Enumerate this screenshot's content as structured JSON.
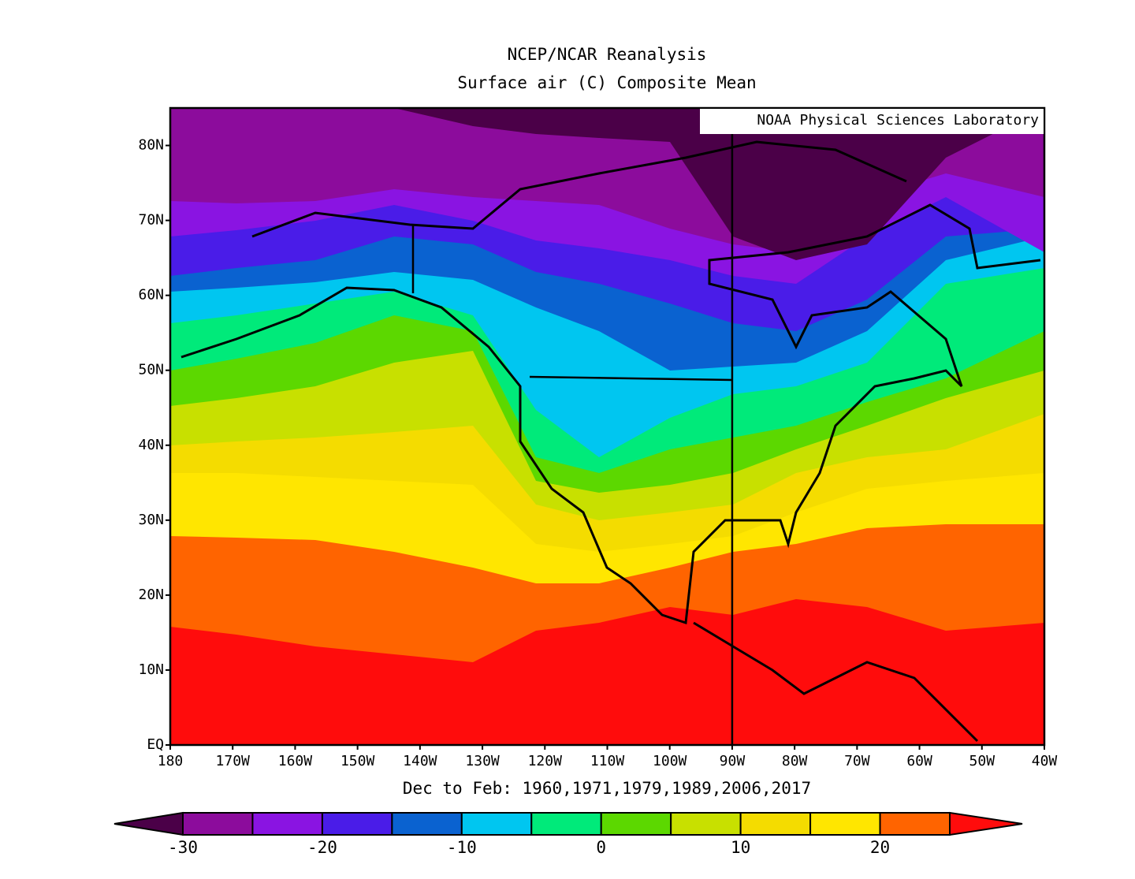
{
  "chart_data": {
    "type": "map",
    "title": "NCEP/NCAR Reanalysis",
    "subtitle": "Surface air (C) Composite Mean",
    "credit": "NOAA Physical Sciences Laboratory",
    "period": "Dec to Feb: 1960,1971,1979,1989,2006,2017",
    "xlim": [
      -180,
      -40
    ],
    "ylim": [
      0,
      85
    ],
    "xticks": [
      {
        "value": -180,
        "label": "180"
      },
      {
        "value": -170,
        "label": "170W"
      },
      {
        "value": -160,
        "label": "160W"
      },
      {
        "value": -150,
        "label": "150W"
      },
      {
        "value": -140,
        "label": "140W"
      },
      {
        "value": -130,
        "label": "130W"
      },
      {
        "value": -120,
        "label": "120W"
      },
      {
        "value": -110,
        "label": "110W"
      },
      {
        "value": -100,
        "label": "100W"
      },
      {
        "value": -90,
        "label": "90W"
      },
      {
        "value": -80,
        "label": "80W"
      },
      {
        "value": -70,
        "label": "70W"
      },
      {
        "value": -60,
        "label": "60W"
      },
      {
        "value": -50,
        "label": "50W"
      },
      {
        "value": -40,
        "label": "40W"
      }
    ],
    "yticks": [
      {
        "value": 0,
        "label": "EQ"
      },
      {
        "value": 10,
        "label": "10N"
      },
      {
        "value": 20,
        "label": "20N"
      },
      {
        "value": 30,
        "label": "30N"
      },
      {
        "value": 40,
        "label": "40N"
      },
      {
        "value": 50,
        "label": "50N"
      },
      {
        "value": 60,
        "label": "60N"
      },
      {
        "value": 70,
        "label": "70N"
      },
      {
        "value": 80,
        "label": "80N"
      }
    ],
    "colorbar": {
      "levels": [
        -30,
        -25,
        -20,
        -15,
        -10,
        -5,
        0,
        5,
        10,
        15,
        20,
        25
      ],
      "colors": [
        "#4b0048",
        "#8c0c9c",
        "#8a14e2",
        "#4a1ce8",
        "#0a62d0",
        "#00c6f0",
        "#00ea7a",
        "#5cd800",
        "#c8e000",
        "#f4dc00",
        "#ffe600",
        "#ff6400",
        "#ff0c0c"
      ],
      "ticks": [
        -30,
        -20,
        -10,
        0,
        10,
        20
      ]
    }
  }
}
